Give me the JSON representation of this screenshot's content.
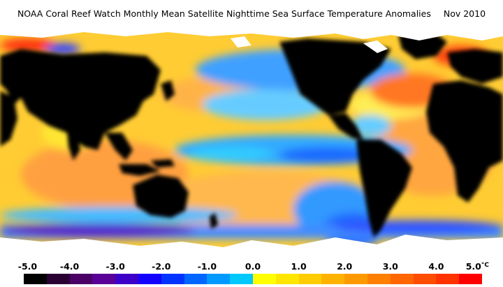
{
  "title": {
    "main": "NOAA Coral Reef Watch Monthly Mean Satellite Nighttime Sea Surface Temperature Anomalies",
    "date": "Nov 2010"
  },
  "colorbar": {
    "unit": "°C",
    "ticks": [
      "-5.0",
      "-4.0",
      "-3.0",
      "-2.0",
      "-1.0",
      "0.0",
      "1.0",
      "2.0",
      "3.0",
      "4.0",
      "5.0"
    ],
    "colors": [
      "#000000",
      "#2a0033",
      "#4b0066",
      "#5a0099",
      "#3c00c8",
      "#1400ff",
      "#0033ff",
      "#0066ff",
      "#0099ff",
      "#00c8ff",
      "#ffff00",
      "#ffe600",
      "#ffcc00",
      "#ffb300",
      "#ff9900",
      "#ff8000",
      "#ff6600",
      "#ff4d00",
      "#ff3300",
      "#ff0000"
    ]
  },
  "map": {
    "land_color": "#000000",
    "ice_color": "#ffffff"
  }
}
